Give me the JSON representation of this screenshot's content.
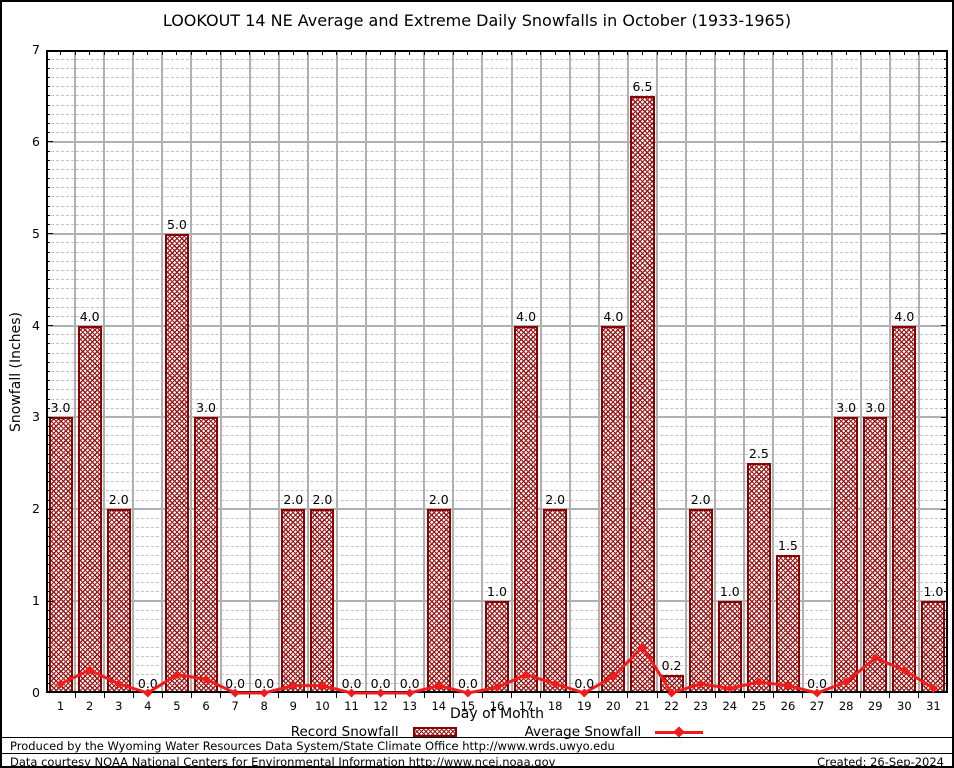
{
  "title": "LOOKOUT 14 NE Average and Extreme Daily Snowfalls in October (1933-1965)",
  "legend": {
    "record_label": "Record Snowfall",
    "average_label": "Average Snowfall"
  },
  "footer": {
    "line1": "Produced by the Wyoming Water Resources Data System/State Climate Office http://www.wrds.uwyo.edu",
    "line2": "Data courtesy NOAA National Centers for Environmental Information http://www.ncei.noaa.gov",
    "created": "Created: 26-Sep-2024"
  },
  "colors": {
    "bar_border": "#8b0000",
    "bar_hatch": "#971616",
    "average_line": "#f21b1b",
    "grid_major": "#b0b0b0",
    "grid_minor": "#c3c3c3",
    "axis": "#000000"
  },
  "chart_data": {
    "type": "bar",
    "title": "LOOKOUT 14 NE Average and Extreme Daily Snowfalls in October (1933-1965)",
    "xlabel": "Day of Month",
    "ylabel": "Snowfall (Inches)",
    "ylim": [
      0,
      7
    ],
    "y_ticks": [
      0,
      1,
      2,
      3,
      4,
      5,
      6,
      7
    ],
    "minor_grid_step": 0.1,
    "grid": "on",
    "legend_position": "bottom",
    "categories": [
      "1",
      "2",
      "3",
      "4",
      "5",
      "6",
      "7",
      "8",
      "9",
      "10",
      "11",
      "12",
      "13",
      "14",
      "15",
      "16",
      "17",
      "18",
      "19",
      "20",
      "21",
      "22",
      "23",
      "24",
      "25",
      "26",
      "27",
      "28",
      "29",
      "30",
      "31"
    ],
    "series": [
      {
        "name": "Record Snowfall",
        "type": "bar",
        "values": [
          3.0,
          4.0,
          2.0,
          0.0,
          5.0,
          3.0,
          0.0,
          0.0,
          2.0,
          2.0,
          0.0,
          0.0,
          0.0,
          2.0,
          0.0,
          1.0,
          4.0,
          2.0,
          0.0,
          4.0,
          6.5,
          0.2,
          2.0,
          1.0,
          2.5,
          1.5,
          0.0,
          3.0,
          3.0,
          4.0,
          1.0
        ],
        "value_labels_shown": true
      },
      {
        "name": "Average Snowfall",
        "type": "line",
        "values": [
          0.1,
          0.25,
          0.1,
          0.0,
          0.2,
          0.15,
          0.0,
          0.0,
          0.08,
          0.08,
          0.0,
          0.0,
          0.0,
          0.08,
          0.0,
          0.06,
          0.2,
          0.1,
          0.0,
          0.18,
          0.5,
          0.0,
          0.1,
          0.05,
          0.12,
          0.08,
          0.0,
          0.12,
          0.38,
          0.25,
          0.05
        ]
      }
    ]
  }
}
